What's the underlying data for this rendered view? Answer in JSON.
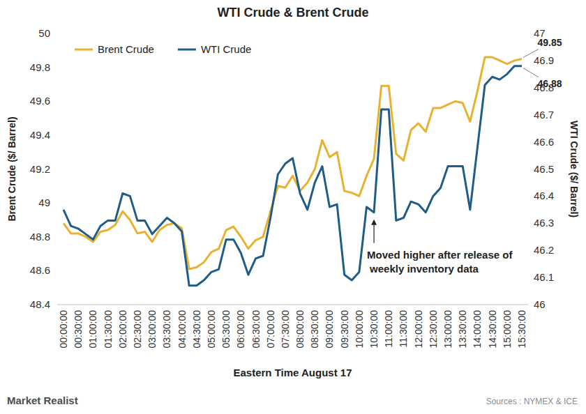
{
  "chart_data": {
    "type": "line",
    "title": "WTI Crude & Brent Crude",
    "x_label": "Eastern Time August 17",
    "y_label": "Brent Crude ($/ Barrel)",
    "y2_label": "WTI Crude ($/ Barrel)",
    "source": "Sources : NYMEX & ICE",
    "logo": "Market Realist",
    "annotation": {
      "text": "Moved higher after release of weekly inventory data",
      "x": "10:30:00"
    },
    "legend": "upper left",
    "grid": false,
    "categories": [
      "00:00:00",
      null,
      "00:30:00",
      null,
      "01:00:00",
      null,
      "01:30:00",
      null,
      "02:00:00",
      null,
      "02:30:00",
      null,
      "03:00:00",
      null,
      "03:30:00",
      null,
      "04:00:00",
      null,
      "04:30:00",
      null,
      "05:00:00",
      null,
      "05:30:00",
      null,
      "06:00:00",
      null,
      "06:30:00",
      null,
      "07:00:00",
      null,
      "07:30:00",
      null,
      "08:00:00",
      null,
      "08:30:00",
      null,
      "09:00:00",
      null,
      "09:30:00",
      null,
      "10:00:00",
      null,
      "10:30:00",
      null,
      "11:00:00",
      null,
      "11:30:00",
      null,
      "12:00:00",
      null,
      "12:30:00",
      null,
      "13:00:00",
      null,
      "13:30:00",
      null,
      "14:00:00",
      null,
      "14:30:00",
      null,
      "15:00:00",
      null,
      "15:30:00"
    ],
    "ylim": [
      48.4,
      50
    ],
    "yticks": [
      48.4,
      48.6,
      48.8,
      49,
      49.2,
      49.4,
      49.6,
      49.8,
      50
    ],
    "y2lim": [
      46,
      47
    ],
    "y2ticks": [
      46,
      46.1,
      46.2,
      46.3,
      46.4,
      46.5,
      46.6,
      46.7,
      46.8,
      46.9,
      47
    ],
    "series": [
      {
        "name": "Brent Crude",
        "color": "#e8b130",
        "axis": "y",
        "values": [
          48.88,
          48.82,
          48.82,
          48.8,
          48.77,
          48.83,
          48.84,
          48.87,
          48.95,
          48.9,
          48.82,
          48.83,
          48.77,
          48.84,
          48.87,
          48.88,
          48.85,
          48.61,
          48.62,
          48.65,
          48.71,
          48.73,
          48.84,
          48.86,
          48.8,
          48.73,
          48.78,
          48.8,
          48.95,
          49.1,
          49.09,
          49.16,
          49.07,
          49.12,
          49.2,
          49.37,
          49.27,
          49.3,
          49.07,
          49.06,
          49.04,
          49.16,
          49.26,
          49.69,
          49.69,
          49.29,
          49.25,
          49.43,
          49.47,
          49.42,
          49.56,
          49.56,
          49.58,
          49.6,
          49.59,
          49.48,
          49.66,
          49.86,
          49.86,
          49.84,
          49.82,
          49.84,
          49.85
        ]
      },
      {
        "name": "WTI Crude",
        "color": "#1f5c87",
        "axis": "y2",
        "values": [
          46.35,
          46.29,
          46.28,
          46.26,
          46.24,
          46.29,
          46.31,
          46.31,
          46.41,
          46.4,
          46.31,
          46.31,
          46.26,
          46.29,
          46.32,
          46.3,
          46.27,
          46.07,
          46.07,
          46.09,
          46.12,
          46.13,
          46.24,
          46.24,
          46.19,
          46.11,
          46.17,
          46.18,
          46.32,
          46.48,
          46.52,
          46.54,
          46.41,
          46.35,
          46.45,
          46.51,
          46.36,
          46.37,
          46.11,
          46.09,
          46.12,
          46.36,
          46.34,
          46.72,
          46.72,
          46.31,
          46.32,
          46.38,
          46.37,
          46.34,
          46.4,
          46.43,
          46.51,
          46.51,
          46.51,
          46.35,
          46.58,
          46.81,
          46.84,
          46.83,
          46.85,
          46.88,
          46.88
        ]
      }
    ]
  }
}
